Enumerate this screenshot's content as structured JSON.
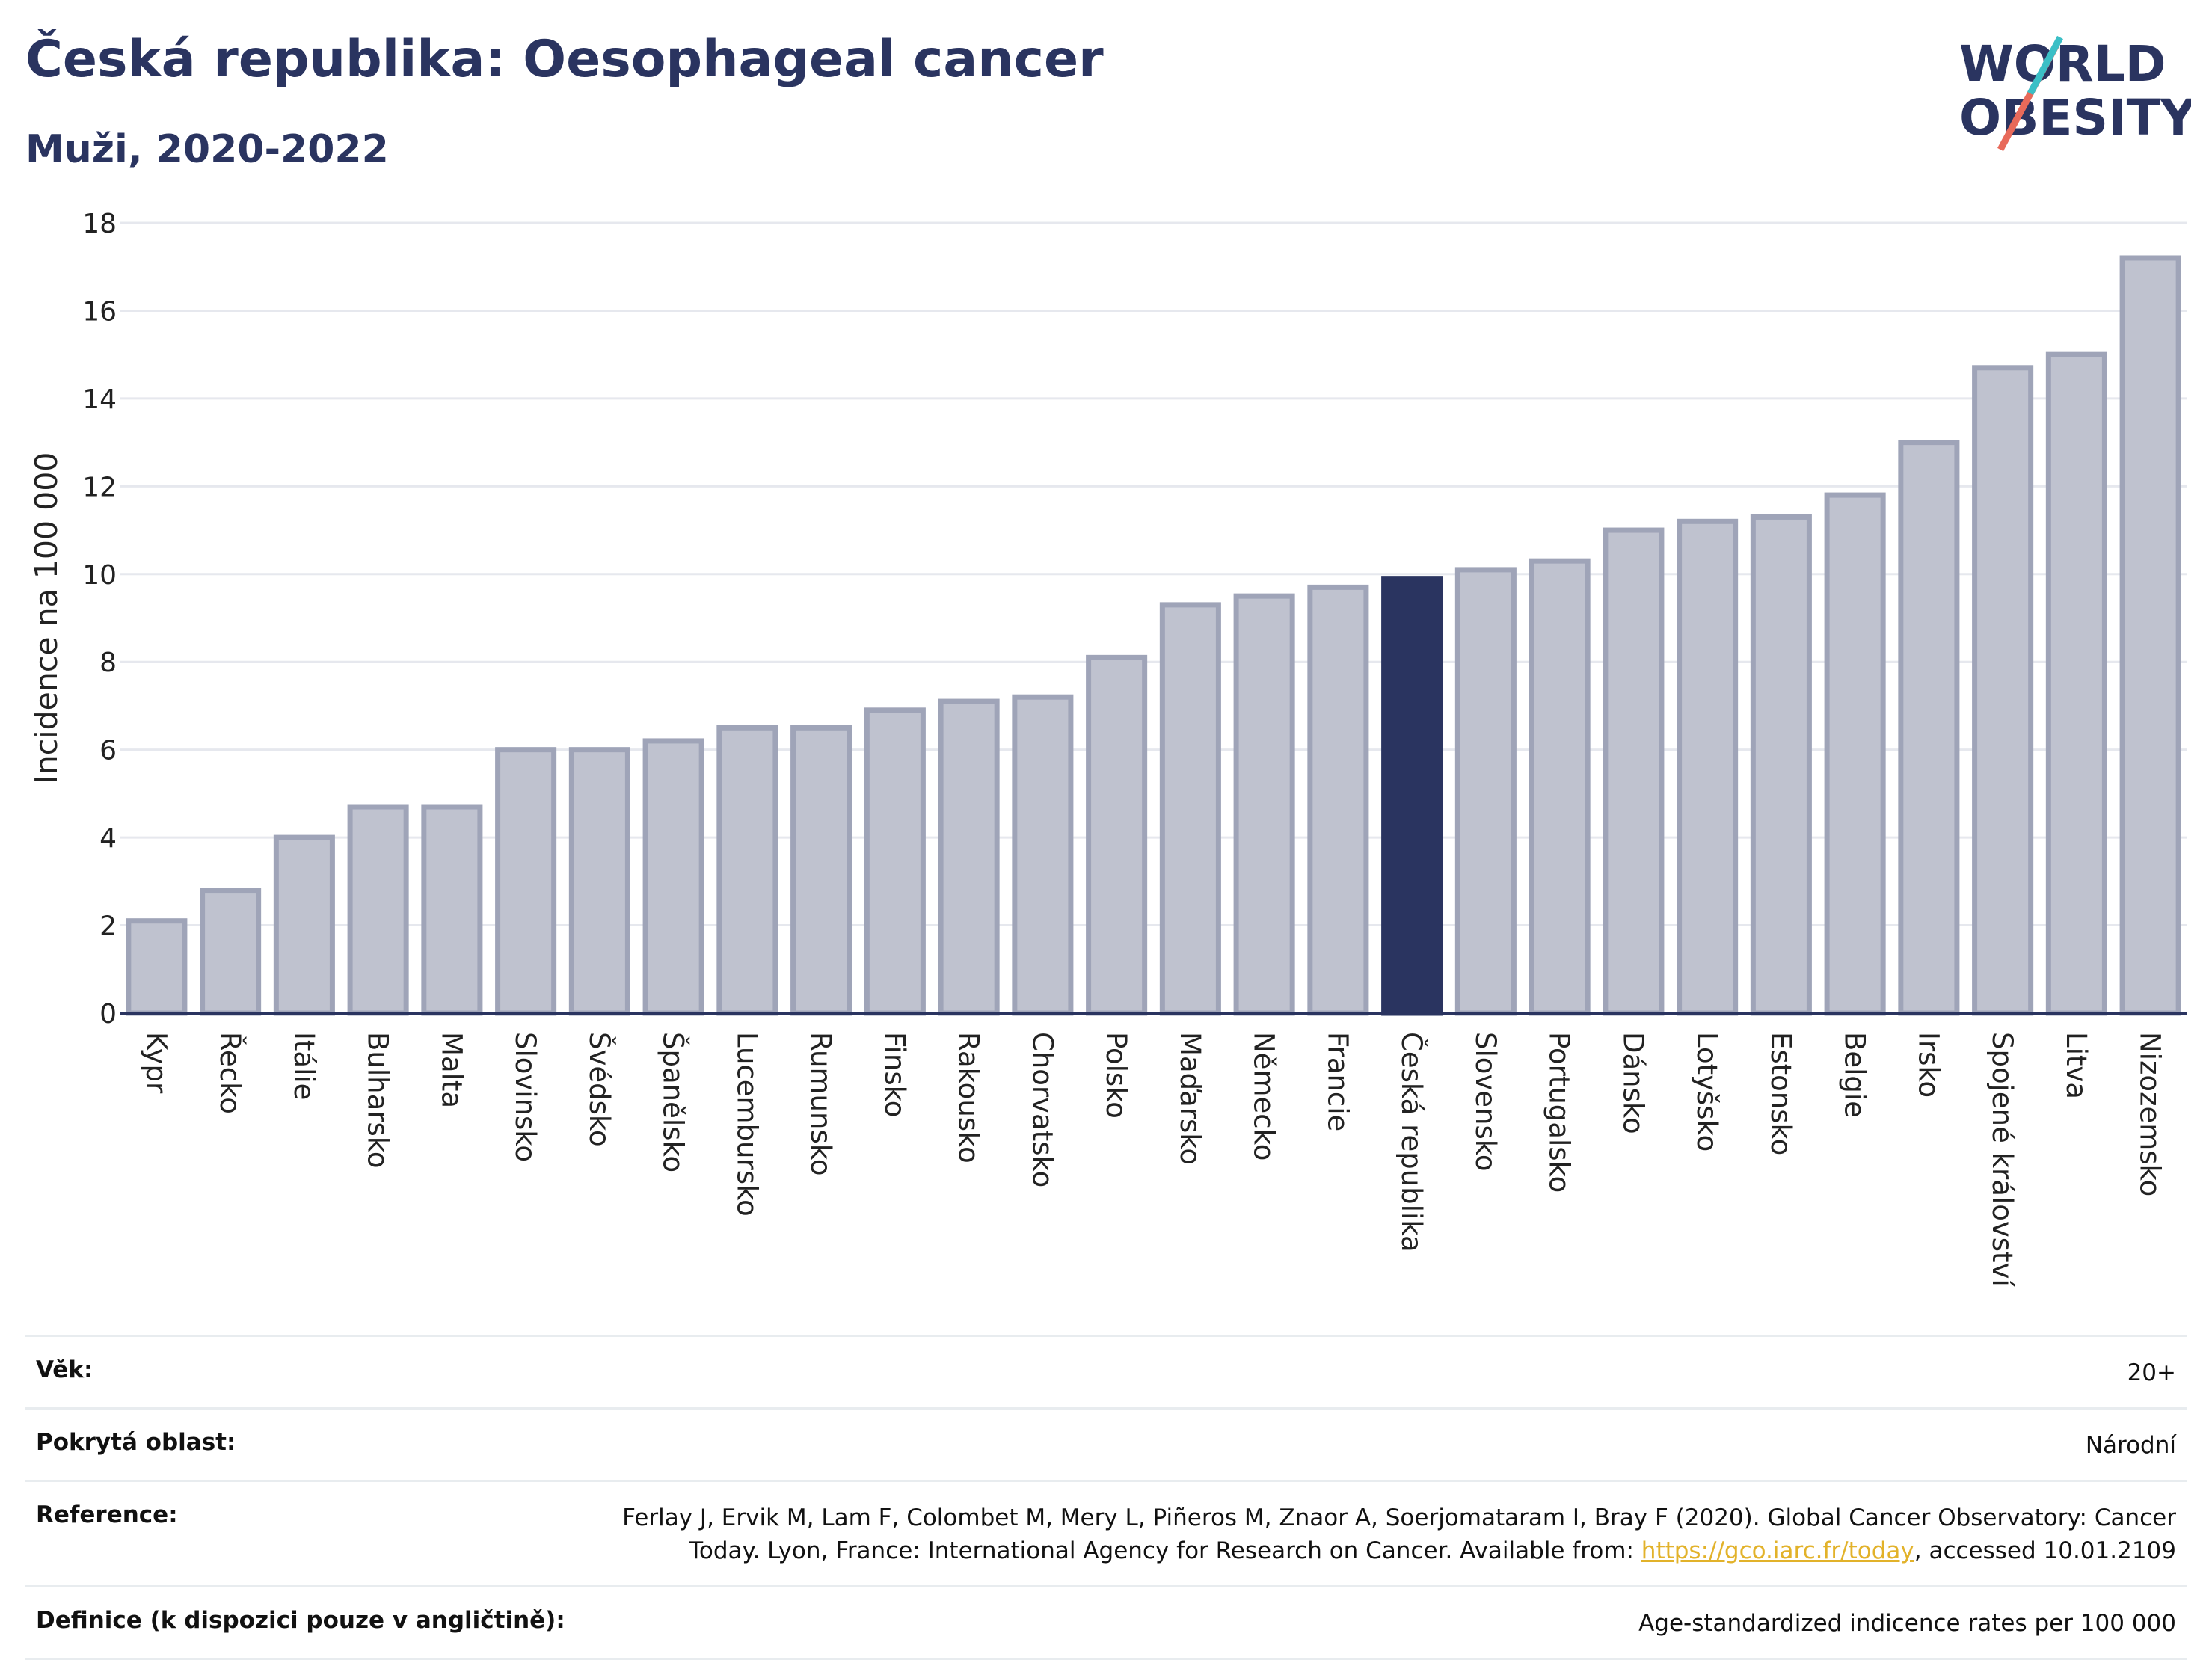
{
  "title": "Česká republika: Oesophageal cancer",
  "subtitle": "Muži, 2020-2022",
  "logo": {
    "line1": "WORLD",
    "line2": "OBESITY"
  },
  "colors": {
    "highlight": "#2a3460",
    "bar": "#bfc2cf",
    "bar_border": "#9fa4b8",
    "grid": "#e6e8ee"
  },
  "chart_data": {
    "type": "bar",
    "ylabel": "Incidence na 100 000",
    "xlabel": "",
    "ylim": [
      0,
      18
    ],
    "yticks": [
      0,
      2,
      4,
      6,
      8,
      10,
      12,
      14,
      16,
      18
    ],
    "grid": true,
    "highlight": "Česká republika",
    "categories": [
      "Kypr",
      "Řecko",
      "Itálie",
      "Bulharsko",
      "Malta",
      "Slovinsko",
      "Švédsko",
      "Španělsko",
      "Lucembursko",
      "Rumunsko",
      "Finsko",
      "Rakousko",
      "Chorvatsko",
      "Polsko",
      "Maďarsko",
      "Německo",
      "Francie",
      "Česká republika",
      "Slovensko",
      "Portugalsko",
      "Dánsko",
      "Lotyšsko",
      "Estonsko",
      "Belgie",
      "Irsko",
      "Spojené království",
      "Litva",
      "Nizozemsko"
    ],
    "values": [
      2.1,
      2.8,
      4.0,
      4.7,
      4.7,
      6.0,
      6.0,
      6.2,
      6.5,
      6.5,
      6.9,
      7.1,
      7.2,
      8.1,
      9.3,
      9.5,
      9.7,
      9.9,
      10.1,
      10.3,
      11.0,
      11.2,
      11.3,
      11.8,
      13.0,
      14.7,
      15.0,
      17.2
    ]
  },
  "info": {
    "age_label": "Věk:",
    "age_value": "20+",
    "coverage_label": "Pokrytá oblast:",
    "coverage_value": "Národní",
    "reference_label": "Reference:",
    "reference_value_1": "Ferlay J, Ervik M, Lam F, Colombet M, Mery L, Piñeros M, Znaor A, Soerjomataram I, Bray F (2020). Global Cancer Observatory: Cancer",
    "reference_value_2": "Today. Lyon, France: International Agency for Research on Cancer. Available from: ",
    "reference_link": "https://gco.iarc.fr/today",
    "reference_value_3": ", accessed 10.01.2109",
    "definition_label": "Definice (k dispozici pouze v angličtině):",
    "definition_value": "Age-standardized indicence rates per 100 000"
  }
}
